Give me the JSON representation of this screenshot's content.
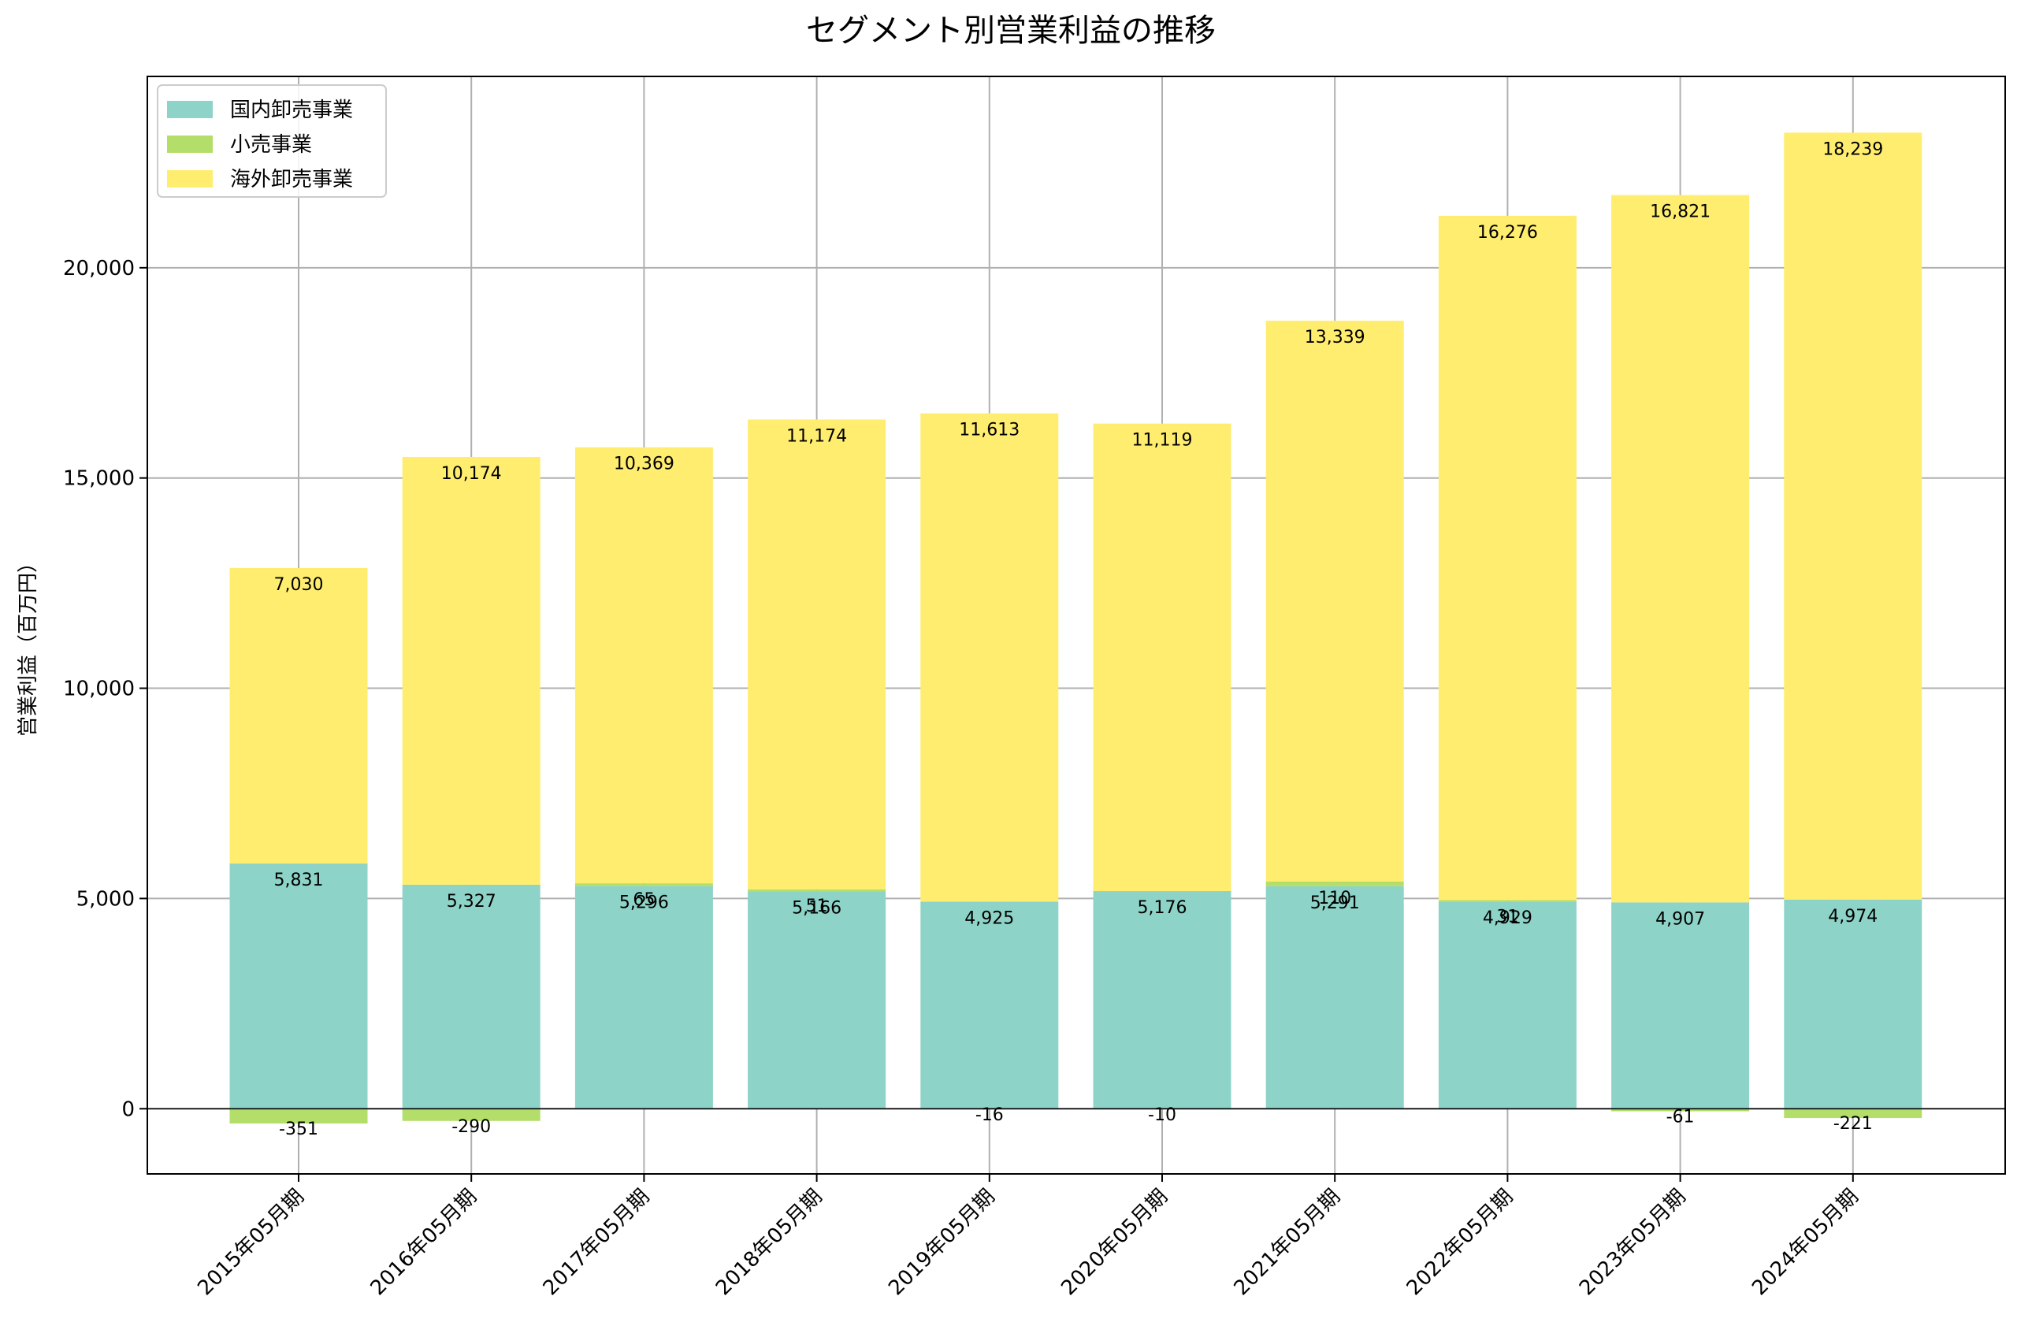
{
  "chart_data": {
    "type": "bar",
    "stacked": true,
    "title": "セグメント別営業利益の推移",
    "xlabel": "",
    "ylabel": "営業利益（百万円）",
    "ylim": [
      -1550,
      24550
    ],
    "yticks": [
      0,
      5000,
      10000,
      15000,
      20000
    ],
    "ytick_labels": [
      "0",
      "5,000",
      "10,000",
      "15,000",
      "20,000"
    ],
    "grid": true,
    "legend_position": "top-left",
    "categories": [
      "2015年05月期",
      "2016年05月期",
      "2017年05月期",
      "2018年05月期",
      "2019年05月期",
      "2020年05月期",
      "2021年05月期",
      "2022年05月期",
      "2023年05月期",
      "2024年05月期"
    ],
    "series": [
      {
        "name": "国内卸売事業",
        "color": "#8ed3c7",
        "values": [
          5831,
          5327,
          5296,
          5166,
          4925,
          5176,
          5291,
          4929,
          4907,
          4974
        ],
        "labels": [
          "5,831",
          "5,327",
          "5,296",
          "5,166",
          "4,925",
          "5,176",
          "5,291",
          "4,929",
          "4,907",
          "4,974"
        ]
      },
      {
        "name": "小売事業",
        "color": "#b3de69",
        "values": [
          -351,
          -290,
          65,
          51,
          -16,
          -10,
          110,
          31,
          -61,
          -221
        ],
        "labels": [
          "-351",
          "-290",
          "65",
          "51",
          "-16",
          "-10",
          "110",
          "31",
          "-61",
          "-221"
        ]
      },
      {
        "name": "海外卸売事業",
        "color": "#ffed6f",
        "values": [
          7030,
          10174,
          10369,
          11174,
          11613,
          11119,
          13339,
          16276,
          16821,
          18239
        ],
        "labels": [
          "7,030",
          "10,174",
          "10,369",
          "11,174",
          "11,613",
          "11,119",
          "13,339",
          "16,276",
          "16,821",
          "18,239"
        ]
      }
    ]
  }
}
